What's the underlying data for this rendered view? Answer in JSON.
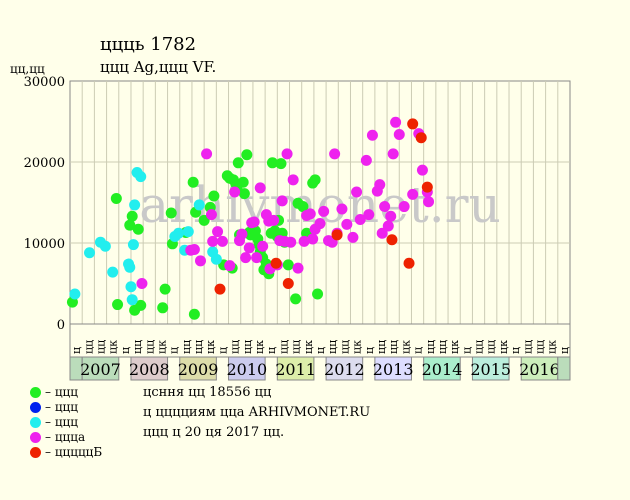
{
  "title": "ццць 1782",
  "subtitle": "ццц Ag,ццц VF.",
  "ylabel": "цц,цц",
  "watermark": "arhivmonet.ru",
  "legend": [
    {
      "label": "– ццц",
      "color": "#22EE22"
    },
    {
      "label": "– ццц",
      "color": "#0022EE"
    },
    {
      "label": "– ццц",
      "color": "#22EEEE"
    },
    {
      "label": "– ццца",
      "color": "#EE22EE"
    },
    {
      "label": "– цццццБ",
      "color": "#EE2200"
    }
  ],
  "info": [
    "цсння цц 18556 цц",
    "ц цццциям цца ARHIVMONET.RU",
    "ццц ц 20 ця 2017 цц."
  ],
  "chart_data": {
    "type": "scatter",
    "ylim": [
      0,
      30000
    ],
    "yticks": [
      0,
      10000,
      20000,
      30000
    ],
    "ytick_labels": [
      "0",
      "10000",
      "20000",
      "30000"
    ],
    "quarter_labels": [
      "ц",
      "цц",
      "цц",
      "цк",
      "ц",
      "цц",
      "цц",
      "цк",
      "ц",
      "цц",
      "цц",
      "цк",
      "ц",
      "цц",
      "цц",
      "цк",
      "ц",
      "цц",
      "цц",
      "цк",
      "ц",
      "цц",
      "цц",
      "цк",
      "ц",
      "цц",
      "цц",
      "цк",
      "ц",
      "цц",
      "цц",
      "цк",
      "ц",
      "цц",
      "цц",
      "цк",
      "ц",
      "цц",
      "цц",
      "цк",
      "ц"
    ],
    "years": [
      {
        "label": "2007",
        "start": 1,
        "end": 4,
        "color": "#BBDDBB"
      },
      {
        "label": "2008",
        "start": 5,
        "end": 8,
        "color": "#DDCCCC"
      },
      {
        "label": "2009",
        "start": 9,
        "end": 12,
        "color": "#DDDDAA"
      },
      {
        "label": "2010",
        "start": 13,
        "end": 16,
        "color": "#CCCCEE"
      },
      {
        "label": "2011",
        "start": 17,
        "end": 20,
        "color": "#DDEEAA"
      },
      {
        "label": "2012",
        "start": 21,
        "end": 24,
        "color": "#DDDDEE"
      },
      {
        "label": "2013",
        "start": 25,
        "end": 28,
        "color": "#DDDDFF"
      },
      {
        "label": "2014",
        "start": 29,
        "end": 32,
        "color": "#AAEECC"
      },
      {
        "label": "2015",
        "start": 33,
        "end": 36,
        "color": "#BBEEDD"
      },
      {
        "label": "2016",
        "start": 37,
        "end": 40,
        "color": "#CCEEBB"
      }
    ],
    "first_band_color": "#BBDDBB",
    "series": [
      {
        "color": "#22EE22",
        "points": [
          [
            0.2,
            2700
          ],
          [
            3.8,
            15500
          ],
          [
            3.9,
            2400
          ],
          [
            4.9,
            12200
          ],
          [
            5.1,
            13300
          ],
          [
            5.6,
            11700
          ],
          [
            5.3,
            1700
          ],
          [
            5.8,
            2300
          ],
          [
            7.6,
            2000
          ],
          [
            7.8,
            4300
          ],
          [
            8.3,
            13700
          ],
          [
            8.4,
            9900
          ],
          [
            9.5,
            11300
          ],
          [
            10.2,
            1200
          ],
          [
            10.1,
            17500
          ],
          [
            10.3,
            13800
          ],
          [
            11.0,
            12800
          ],
          [
            11.5,
            14400
          ],
          [
            11.8,
            15800
          ],
          [
            12.6,
            7300
          ],
          [
            12.9,
            18300
          ],
          [
            13.1,
            18000
          ],
          [
            13.3,
            6900
          ],
          [
            13.4,
            17800
          ],
          [
            13.6,
            17300
          ],
          [
            13.7,
            16600
          ],
          [
            13.8,
            19900
          ],
          [
            13.9,
            11000
          ],
          [
            14.2,
            17500
          ],
          [
            14.3,
            16100
          ],
          [
            14.5,
            20900
          ],
          [
            14.7,
            11300
          ],
          [
            14.8,
            11000
          ],
          [
            15.0,
            11800
          ],
          [
            15.2,
            11500
          ],
          [
            15.4,
            10500
          ],
          [
            15.5,
            9800
          ],
          [
            15.6,
            8900
          ],
          [
            15.8,
            8200
          ],
          [
            15.9,
            6700
          ],
          [
            16.1,
            7400
          ],
          [
            16.3,
            6200
          ],
          [
            16.5,
            11200
          ],
          [
            16.6,
            19900
          ],
          [
            16.8,
            11500
          ],
          [
            17.0,
            10800
          ],
          [
            17.1,
            12800
          ],
          [
            17.3,
            19800
          ],
          [
            17.4,
            11200
          ],
          [
            17.6,
            10100
          ],
          [
            17.9,
            7300
          ],
          [
            18.5,
            3100
          ],
          [
            18.7,
            14900
          ],
          [
            19.1,
            14500
          ],
          [
            19.4,
            11200
          ],
          [
            19.9,
            17400
          ],
          [
            20.1,
            17800
          ],
          [
            20.3,
            3700
          ]
        ]
      },
      {
        "color": "#0022EE",
        "points": []
      },
      {
        "color": "#22EEEE",
        "points": [
          [
            0.4,
            3700
          ],
          [
            1.6,
            8800
          ],
          [
            2.5,
            10100
          ],
          [
            2.9,
            9600
          ],
          [
            3.5,
            6400
          ],
          [
            4.8,
            7400
          ],
          [
            4.9,
            7000
          ],
          [
            5.0,
            4600
          ],
          [
            5.1,
            3000
          ],
          [
            5.2,
            9800
          ],
          [
            5.3,
            14700
          ],
          [
            5.5,
            18700
          ],
          [
            5.8,
            18200
          ],
          [
            8.6,
            10800
          ],
          [
            8.9,
            11200
          ],
          [
            9.4,
            9100
          ],
          [
            9.7,
            11400
          ],
          [
            10.6,
            14700
          ],
          [
            11.7,
            8900
          ],
          [
            12.0,
            8000
          ]
        ]
      },
      {
        "color": "#EE22EE",
        "points": [
          [
            5.9,
            5000
          ],
          [
            9.9,
            9100
          ],
          [
            10.2,
            9200
          ],
          [
            10.7,
            7800
          ],
          [
            11.2,
            21000
          ],
          [
            11.6,
            13500
          ],
          [
            11.7,
            10200
          ],
          [
            12.1,
            11400
          ],
          [
            12.5,
            10200
          ],
          [
            13.1,
            7200
          ],
          [
            13.5,
            16300
          ],
          [
            13.9,
            10300
          ],
          [
            14.1,
            11100
          ],
          [
            14.4,
            8200
          ],
          [
            14.7,
            9400
          ],
          [
            14.9,
            12500
          ],
          [
            15.1,
            12600
          ],
          [
            15.3,
            8200
          ],
          [
            15.6,
            16800
          ],
          [
            15.8,
            9600
          ],
          [
            16.1,
            13500
          ],
          [
            16.3,
            12700
          ],
          [
            16.4,
            6800
          ],
          [
            16.7,
            12800
          ],
          [
            17.0,
            7300
          ],
          [
            17.2,
            10300
          ],
          [
            17.4,
            15200
          ],
          [
            17.6,
            10200
          ],
          [
            17.8,
            21000
          ],
          [
            18.1,
            10100
          ],
          [
            18.3,
            17800
          ],
          [
            18.7,
            6900
          ],
          [
            19.2,
            10200
          ],
          [
            19.4,
            13400
          ],
          [
            19.7,
            13600
          ],
          [
            19.9,
            10500
          ],
          [
            20.1,
            11700
          ],
          [
            20.5,
            12400
          ],
          [
            20.8,
            13900
          ],
          [
            21.2,
            10300
          ],
          [
            21.5,
            10100
          ],
          [
            21.7,
            21000
          ],
          [
            21.9,
            11200
          ],
          [
            22.3,
            14200
          ],
          [
            22.7,
            12300
          ],
          [
            23.2,
            10700
          ],
          [
            23.5,
            16300
          ],
          [
            23.8,
            12900
          ],
          [
            24.3,
            20200
          ],
          [
            24.5,
            13500
          ],
          [
            24.8,
            23300
          ],
          [
            25.2,
            16400
          ],
          [
            25.4,
            17200
          ],
          [
            25.6,
            11200
          ],
          [
            25.8,
            14500
          ],
          [
            26.1,
            12100
          ],
          [
            26.3,
            13300
          ],
          [
            26.5,
            21000
          ],
          [
            26.7,
            24900
          ],
          [
            27.0,
            23400
          ],
          [
            27.4,
            14500
          ],
          [
            28.1,
            16000
          ],
          [
            28.6,
            23500
          ],
          [
            28.9,
            19000
          ],
          [
            29.3,
            16300
          ],
          [
            29.4,
            15100
          ]
        ]
      },
      {
        "color": "#EE2200",
        "points": [
          [
            12.3,
            4300
          ],
          [
            16.9,
            7500
          ],
          [
            17.9,
            5000
          ],
          [
            21.9,
            11000
          ],
          [
            26.4,
            10400
          ],
          [
            27.8,
            7500
          ],
          [
            28.1,
            24700
          ],
          [
            28.8,
            23000
          ],
          [
            29.3,
            16900
          ]
        ]
      }
    ]
  }
}
